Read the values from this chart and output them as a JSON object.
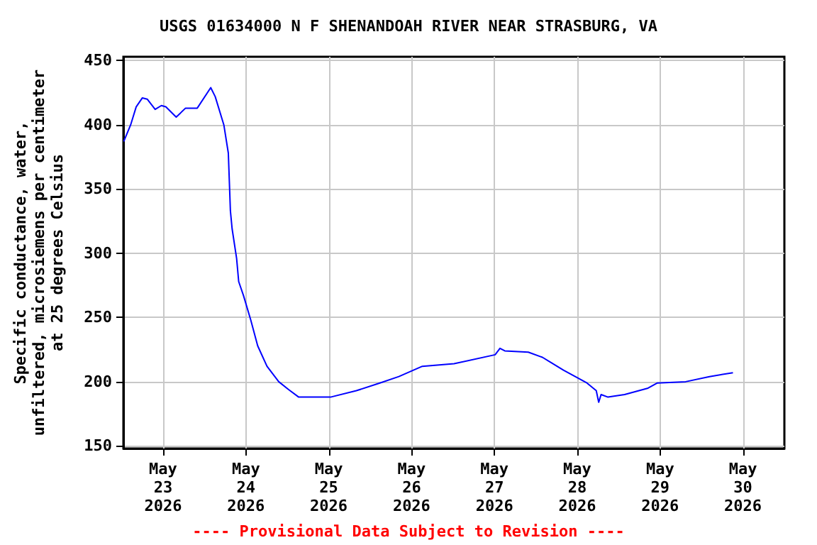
{
  "chart_data": {
    "type": "line",
    "title": "USGS 01634000 N F SHENANDOAH RIVER NEAR STRASBURG, VA",
    "ylabel": "Specific conductance, water,\nunfiltered, microsiemens per centimeter\nat 25 degrees Celsius",
    "annotations": [
      "---- Provisional Data Subject to Revision ----"
    ],
    "x": [
      "2026-05-22T12:36",
      "2026-05-22T14:36",
      "2026-05-22T16:12",
      "2026-05-22T18:00",
      "2026-05-22T19:24",
      "2026-05-22T21:42",
      "2026-05-22T23:30",
      "2026-05-23T00:48",
      "2026-05-23T03:48",
      "2026-05-23T06:30",
      "2026-05-23T09:54",
      "2026-05-23T13:48",
      "2026-05-23T15:06",
      "2026-05-23T17:36",
      "2026-05-23T18:54",
      "2026-05-23T19:30",
      "2026-05-23T20:00",
      "2026-05-23T21:18",
      "2026-05-23T21:54",
      "2026-05-23T23:18",
      "2026-05-24T01:24",
      "2026-05-24T03:24",
      "2026-05-24T06:06",
      "2026-05-24T09:30",
      "2026-05-24T12:18",
      "2026-05-24T15:18",
      "2026-05-25T00:30",
      "2026-05-25T08:00",
      "2026-05-25T14:48",
      "2026-05-25T20:18",
      "2026-05-26T03:06",
      "2026-05-26T12:18",
      "2026-05-27T00:12",
      "2026-05-27T01:36",
      "2026-05-27T03:00",
      "2026-05-27T09:48",
      "2026-05-27T13:54",
      "2026-05-27T20:00",
      "2026-05-28T02:48",
      "2026-05-28T05:30",
      "2026-05-28T06:12",
      "2026-05-28T06:54",
      "2026-05-28T08:54",
      "2026-05-28T13:42",
      "2026-05-28T20:30",
      "2026-05-28T23:12",
      "2026-05-29T07:24",
      "2026-05-29T14:18",
      "2026-05-29T21:06"
    ],
    "series": [
      {
        "color": "#0000ff",
        "values": [
          387,
          400,
          414,
          421,
          420,
          412,
          415,
          414,
          406,
          413,
          413,
          429,
          422,
          400,
          378,
          333,
          319,
          296,
          278,
          267,
          248,
          228,
          212,
          200,
          194,
          188,
          188,
          193,
          199,
          204,
          212,
          214,
          221,
          226,
          224,
          223,
          219,
          209,
          199,
          193,
          184,
          190,
          188,
          190,
          195,
          199,
          200,
          204,
          207
        ]
      }
    ],
    "xlim": [
      "2026-05-22T12:30",
      "2026-05-30T12:00"
    ],
    "xticks": [
      {
        "value": "2026-05-23",
        "label": "May\n23\n2026"
      },
      {
        "value": "2026-05-24",
        "label": "May\n24\n2026"
      },
      {
        "value": "2026-05-25",
        "label": "May\n25\n2026"
      },
      {
        "value": "2026-05-26",
        "label": "May\n26\n2026"
      },
      {
        "value": "2026-05-27",
        "label": "May\n27\n2026"
      },
      {
        "value": "2026-05-28",
        "label": "May\n28\n2026"
      },
      {
        "value": "2026-05-29",
        "label": "May\n29\n2026"
      },
      {
        "value": "2026-05-30",
        "label": "May\n30\n2026"
      }
    ],
    "ylim": [
      148,
      453
    ],
    "yticks": [
      150,
      200,
      250,
      300,
      350,
      400,
      450
    ],
    "grid": true,
    "marker": "none",
    "line_style": "solid"
  }
}
